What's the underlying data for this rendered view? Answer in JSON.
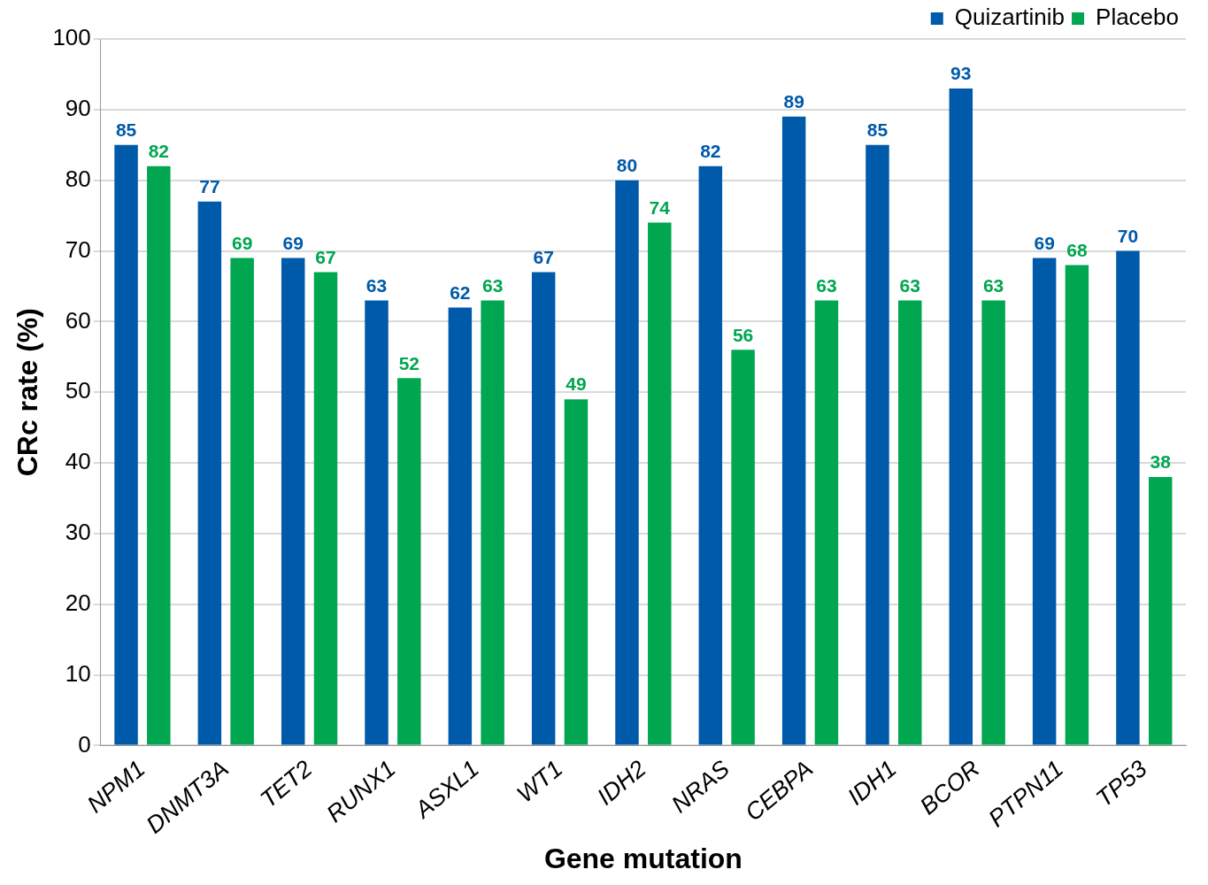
{
  "chart_data": {
    "type": "bar",
    "xlabel": "Gene mutation",
    "ylabel": "CRc rate (%)",
    "categories": [
      "NPM1",
      "DNMT3A",
      "TET2",
      "RUNX1",
      "ASXL1",
      "WT1",
      "IDH2",
      "NRAS",
      "CEBPA",
      "IDH1",
      "BCOR",
      "PTPN11",
      "TP53"
    ],
    "series": [
      {
        "name": "Quizartinib",
        "color": "#005aaa",
        "values": [
          85,
          77,
          69,
          63,
          62,
          67,
          80,
          82,
          89,
          85,
          93,
          69,
          70
        ]
      },
      {
        "name": "Placebo",
        "color": "#00a650",
        "values": [
          82,
          69,
          67,
          52,
          63,
          49,
          74,
          56,
          63,
          63,
          63,
          68,
          38
        ]
      }
    ],
    "ylim": [
      0,
      100
    ],
    "yticks": [
      0,
      10,
      20,
      30,
      40,
      50,
      60,
      70,
      80,
      90,
      100
    ],
    "grid": "y",
    "legend": "top right",
    "data_labels": true
  }
}
